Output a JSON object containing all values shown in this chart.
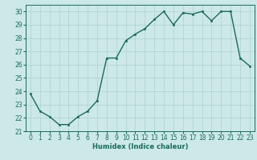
{
  "x": [
    0,
    1,
    2,
    3,
    4,
    5,
    6,
    7,
    8,
    9,
    10,
    11,
    12,
    13,
    14,
    15,
    16,
    17,
    18,
    19,
    20,
    21,
    22,
    23
  ],
  "y": [
    23.8,
    22.5,
    22.1,
    21.5,
    21.5,
    22.1,
    22.5,
    23.3,
    26.5,
    26.5,
    27.8,
    28.3,
    28.7,
    29.4,
    30.0,
    29.0,
    29.9,
    29.8,
    30.0,
    29.3,
    30.0,
    30.0,
    26.5,
    25.9
  ],
  "line_color": "#1a6b5a",
  "marker_color": "#1a6b5a",
  "bg_color": "#cce8e8",
  "grid_color": "#b0d0d0",
  "xlabel": "Humidex (Indice chaleur)",
  "ylim": [
    21,
    30.5
  ],
  "xlim": [
    -0.5,
    23.5
  ],
  "yticks": [
    21,
    22,
    23,
    24,
    25,
    26,
    27,
    28,
    29,
    30
  ],
  "xticks": [
    0,
    1,
    2,
    3,
    4,
    5,
    6,
    7,
    8,
    9,
    10,
    11,
    12,
    13,
    14,
    15,
    16,
    17,
    18,
    19,
    20,
    21,
    22,
    23
  ],
  "label_fontsize": 6,
  "tick_fontsize": 5.5,
  "linewidth": 1.0,
  "markersize": 2.0
}
